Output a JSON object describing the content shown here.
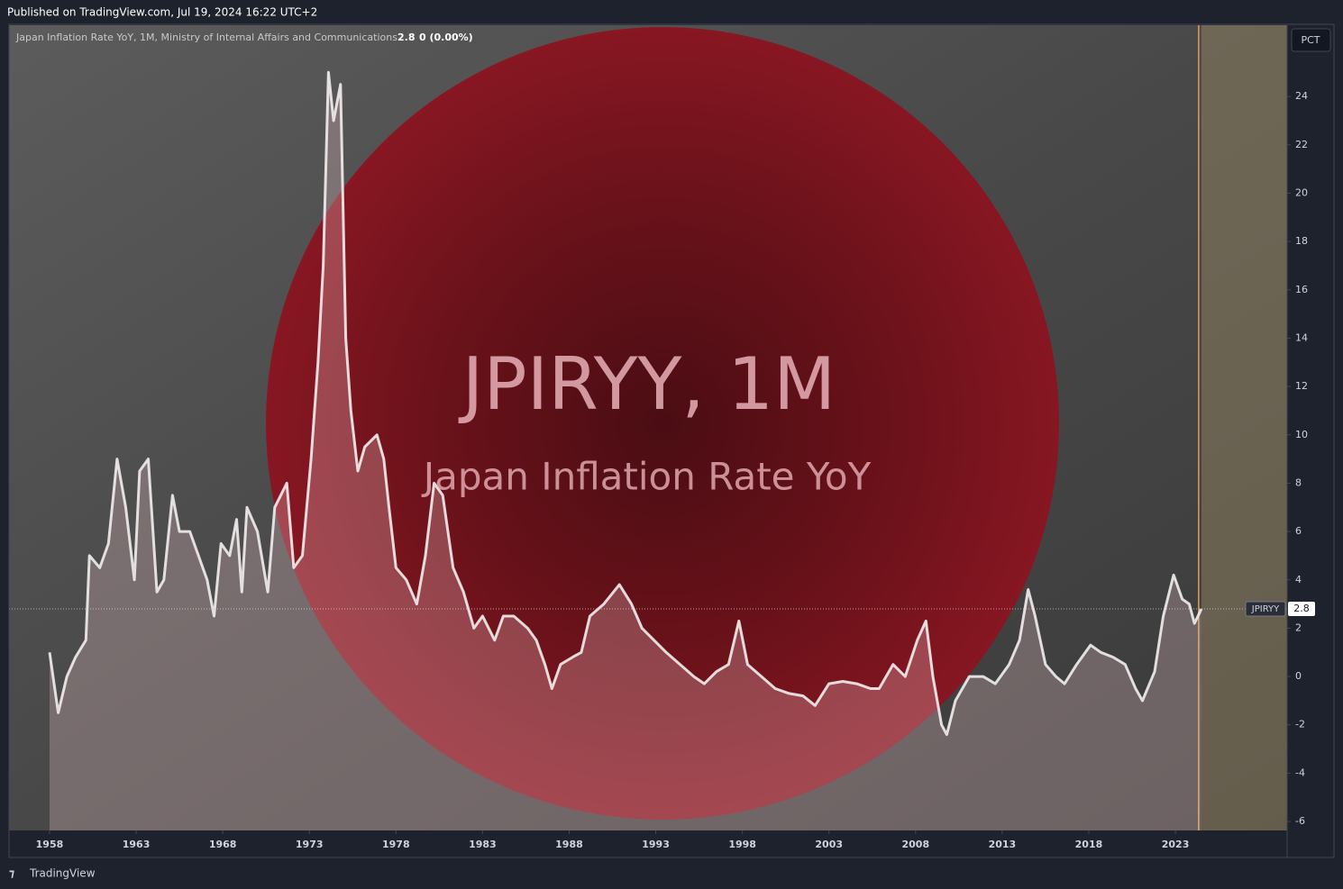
{
  "header": "Published on TradingView.com, Jul 19, 2024 16:22 UTC+2",
  "footer": "TradingView",
  "chart_data": {
    "type": "line",
    "legend_title": "Japan Inflation Rate YoY, 1M, Ministry of Internal Affairs and Communications",
    "last_value": "2.8",
    "change": "0 (0.00%)",
    "scale_label": "PCT",
    "watermark": "JPIRYY, 1M",
    "watermark_subtitle": "Japan Inflation Rate YoY",
    "symbol": "JPIRYY",
    "color": "#f2eeee",
    "x": [
      1958.0,
      1958.5,
      1959.0,
      1959.5,
      1960.1,
      1960.3,
      1960.9,
      1961.4,
      1961.9,
      1962.4,
      1962.9,
      1963.2,
      1963.7,
      1964.2,
      1964.6,
      1965.1,
      1965.5,
      1966.1,
      1966.6,
      1967.1,
      1967.5,
      1967.9,
      1968.4,
      1968.8,
      1969.1,
      1969.4,
      1970.0,
      1970.6,
      1971.0,
      1971.7,
      1972.1,
      1972.6,
      1973.1,
      1973.5,
      1973.8,
      1974.1,
      1974.4,
      1974.8,
      1975.1,
      1975.4,
      1975.8,
      1976.2,
      1976.9,
      1977.3,
      1977.6,
      1978.0,
      1978.6,
      1979.2,
      1979.7,
      1980.2,
      1980.7,
      1981.3,
      1981.9,
      1982.5,
      1983.0,
      1983.7,
      1984.2,
      1984.8,
      1985.6,
      1986.1,
      1986.6,
      1987.0,
      1987.5,
      1988.2,
      1988.7,
      1989.2,
      1990.0,
      1990.9,
      1991.6,
      1992.2,
      1992.9,
      1993.6,
      1994.4,
      1995.2,
      1995.8,
      1996.5,
      1997.2,
      1997.8,
      1998.3,
      1999.1,
      1999.9,
      2000.7,
      2001.5,
      2002.2,
      2003.0,
      2003.8,
      2004.6,
      2005.4,
      2005.9,
      2006.7,
      2007.4,
      2008.1,
      2008.6,
      2009.0,
      2009.5,
      2009.8,
      2010.3,
      2011.1,
      2011.9,
      2012.6,
      2013.4,
      2014.0,
      2014.5,
      2014.9,
      2015.5,
      2016.1,
      2016.6,
      2017.3,
      2018.1,
      2018.7,
      2019.4,
      2020.1,
      2020.7,
      2021.1,
      2021.8,
      2022.3,
      2022.9,
      2023.4,
      2023.8,
      2024.1,
      2024.5
    ],
    "values": [
      1.0,
      -1.5,
      0.0,
      0.8,
      1.5,
      5.0,
      4.5,
      5.5,
      9.0,
      7.0,
      4.0,
      8.5,
      9.0,
      3.5,
      4.0,
      7.5,
      6.0,
      6.0,
      5.0,
      4.0,
      2.5,
      5.5,
      5.0,
      6.5,
      3.5,
      7.0,
      6.0,
      3.5,
      7.0,
      8.0,
      4.5,
      5.0,
      9.0,
      13.0,
      17.0,
      25.0,
      23.0,
      24.5,
      14.0,
      11.0,
      8.5,
      9.5,
      10.0,
      9.0,
      7.0,
      4.5,
      4.0,
      3.0,
      5.0,
      8.0,
      7.5,
      4.5,
      3.5,
      2.0,
      2.5,
      1.5,
      2.5,
      2.5,
      2.0,
      1.5,
      0.5,
      -0.5,
      0.5,
      0.8,
      1.0,
      2.5,
      3.0,
      3.8,
      3.0,
      2.0,
      1.5,
      1.0,
      0.5,
      0.0,
      -0.3,
      0.2,
      0.5,
      2.3,
      0.5,
      0.0,
      -0.5,
      -0.7,
      -0.8,
      -1.2,
      -0.3,
      -0.2,
      -0.3,
      -0.5,
      -0.5,
      0.5,
      0.0,
      1.5,
      2.3,
      0.0,
      -2.0,
      -2.4,
      -1.0,
      0.0,
      0.0,
      -0.3,
      0.5,
      1.5,
      3.6,
      2.5,
      0.5,
      0.0,
      -0.3,
      0.5,
      1.3,
      1.0,
      0.8,
      0.5,
      -0.5,
      -1.0,
      0.2,
      2.5,
      4.2,
      3.2,
      3.0,
      2.2,
      2.8
    ],
    "xlim": [
      1955.66,
      2029.45
    ],
    "ylim": [
      -6.37,
      26.95
    ],
    "xticks": [
      1958,
      1963,
      1968,
      1973,
      1978,
      1983,
      1988,
      1993,
      1998,
      2003,
      2008,
      2013,
      2018,
      2023
    ],
    "yticks": [
      -6,
      -4,
      -2,
      0,
      2,
      4,
      6,
      8,
      10,
      12,
      14,
      16,
      18,
      20,
      22,
      24
    ]
  }
}
